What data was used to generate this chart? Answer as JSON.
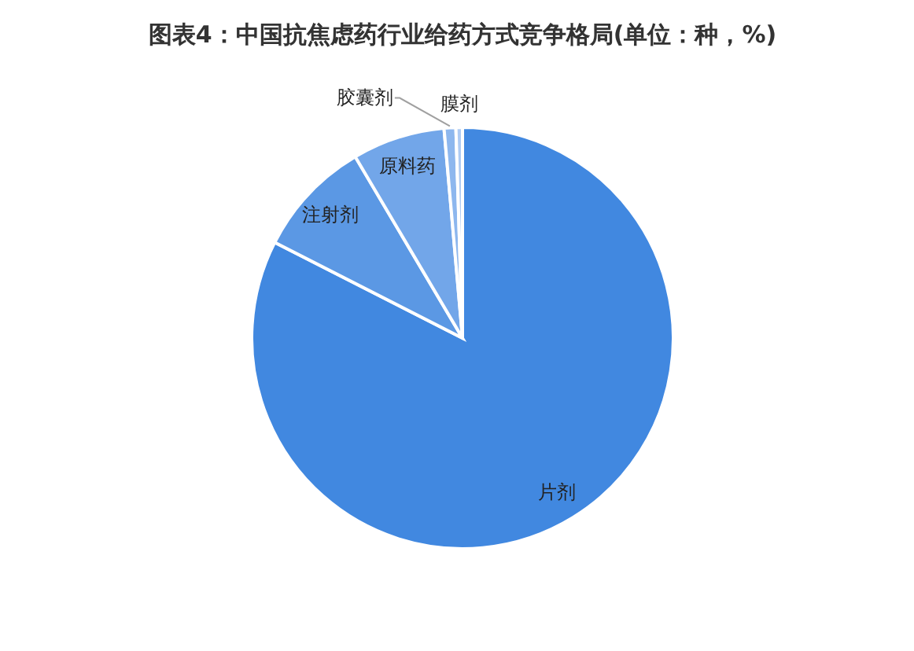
{
  "chart_data": {
    "type": "pie",
    "title": "图表4：中国抗焦虑药行业给药方式竞争格局(单位：种，%)",
    "categories": [
      "片剂",
      "注射剂",
      "原料药",
      "胶囊剂",
      "膜剂"
    ],
    "values": [
      82.5,
      9.0,
      7.1,
      0.9,
      0.5
    ],
    "colors": [
      "#4188e0",
      "#5b98e4",
      "#72a6e9",
      "#8db7ee",
      "#aecbf3"
    ]
  }
}
